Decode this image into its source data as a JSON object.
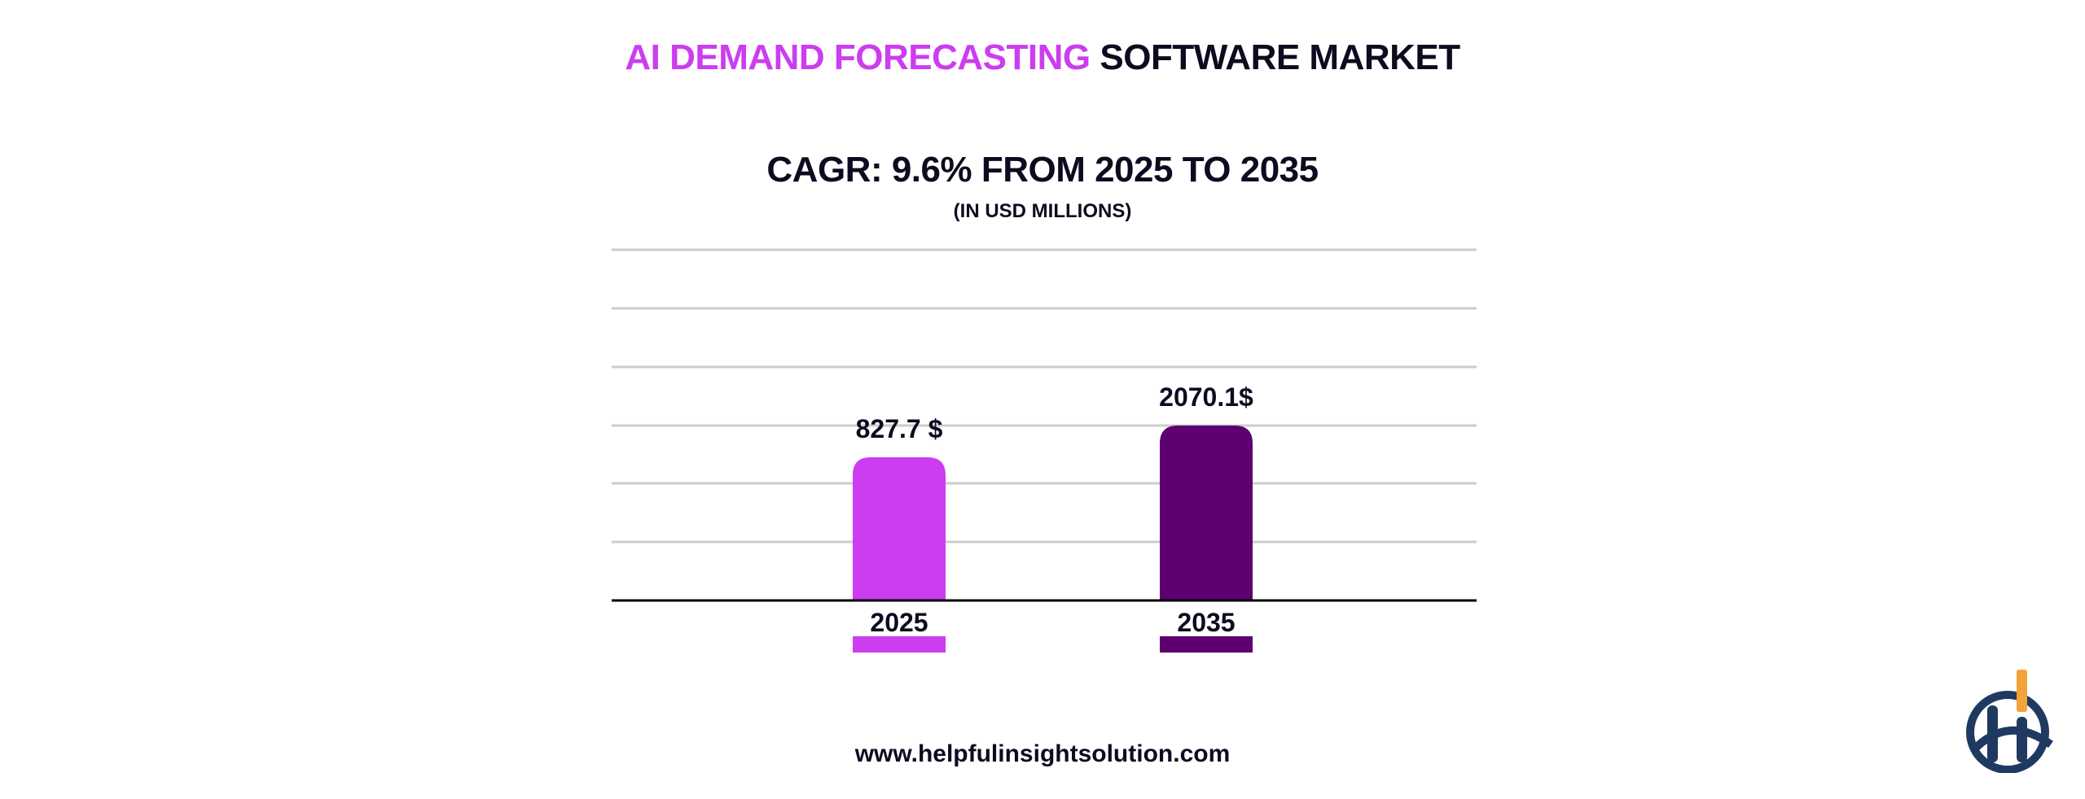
{
  "title": {
    "highlight": "AI DEMAND FORECASTING",
    "rest": "SOFTWARE MARKET",
    "highlight_color": "#cc3cf0"
  },
  "subtitle": "CAGR: 9.6% FROM 2025 TO 2035",
  "unit_note": "(IN USD MILLIONS)",
  "website": "www.helpfulinsightsolution.com",
  "logo": {
    "name": "helpful-insight-logo",
    "colors": [
      "#1f3a60",
      "#f0a43a"
    ]
  },
  "chart_data": {
    "type": "bar",
    "categories": [
      "2025",
      "2035"
    ],
    "values": [
      827.7,
      2070.1
    ],
    "data_labels": [
      "827.7 $",
      "2070.1$"
    ],
    "colors": [
      "#cc3cf0",
      "#5e0070"
    ],
    "title": "CAGR: 9.6% FROM 2025 TO 2035",
    "ylabel": "",
    "xlabel": "",
    "grid": true,
    "legend": "bottom"
  }
}
